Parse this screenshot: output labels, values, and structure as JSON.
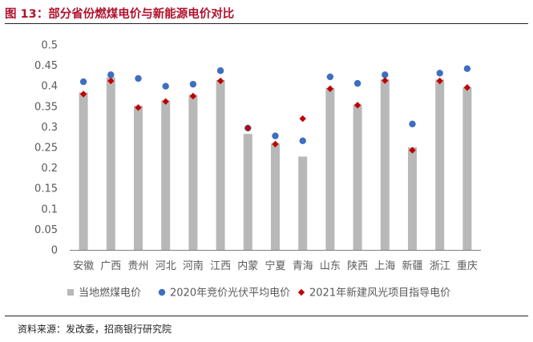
{
  "header": {
    "title": "图 13：部分省份燃煤电价与新能源电价对比"
  },
  "footer": {
    "source": "资料来源：发改委，招商银行研究院"
  },
  "colors": {
    "title": "#b0122c",
    "bar": "#b8b8b8",
    "dot": "#3e6ebf",
    "diamond": "#c00000",
    "axis": "#7f7f7f",
    "text": "#595959"
  },
  "chart_data": {
    "type": "bar",
    "title": "",
    "xlabel": "",
    "ylabel": "",
    "ylim": [
      0,
      0.5
    ],
    "yticks": [
      "0",
      "0.05",
      "0.1",
      "0.15",
      "0.2",
      "0.25",
      "0.3",
      "0.35",
      "0.4",
      "0.45",
      "0.5"
    ],
    "grid": false,
    "legend_position": "bottom",
    "categories": [
      "安徽",
      "广西",
      "贵州",
      "河北",
      "河南",
      "江西",
      "内蒙",
      "宁夏",
      "青海",
      "山东",
      "陕西",
      "上海",
      "新疆",
      "浙江",
      "重庆"
    ],
    "series": [
      {
        "name": "当地燃煤电价",
        "type": "bar",
        "marker": "square",
        "values": [
          0.384,
          0.4207,
          0.3515,
          0.3644,
          0.3779,
          0.4143,
          0.2829,
          0.2595,
          0.2277,
          0.3949,
          0.3545,
          0.4155,
          0.25,
          0.4153,
          0.3964
        ]
      },
      {
        "name": "2020年竞价光伏平均电价",
        "type": "scatter",
        "marker": "circle",
        "values": [
          0.41,
          0.427,
          0.418,
          0.399,
          0.404,
          0.437,
          0.297,
          0.278,
          0.266,
          0.422,
          0.406,
          0.427,
          0.307,
          0.431,
          0.442
        ]
      },
      {
        "name": "2021年新建风光项目指导电价",
        "type": "scatter",
        "marker": "diamond",
        "values": [
          0.38,
          0.412,
          0.347,
          0.362,
          0.375,
          0.412,
          0.297,
          0.258,
          0.32,
          0.393,
          0.353,
          0.413,
          0.243,
          0.412,
          0.396
        ]
      }
    ]
  }
}
